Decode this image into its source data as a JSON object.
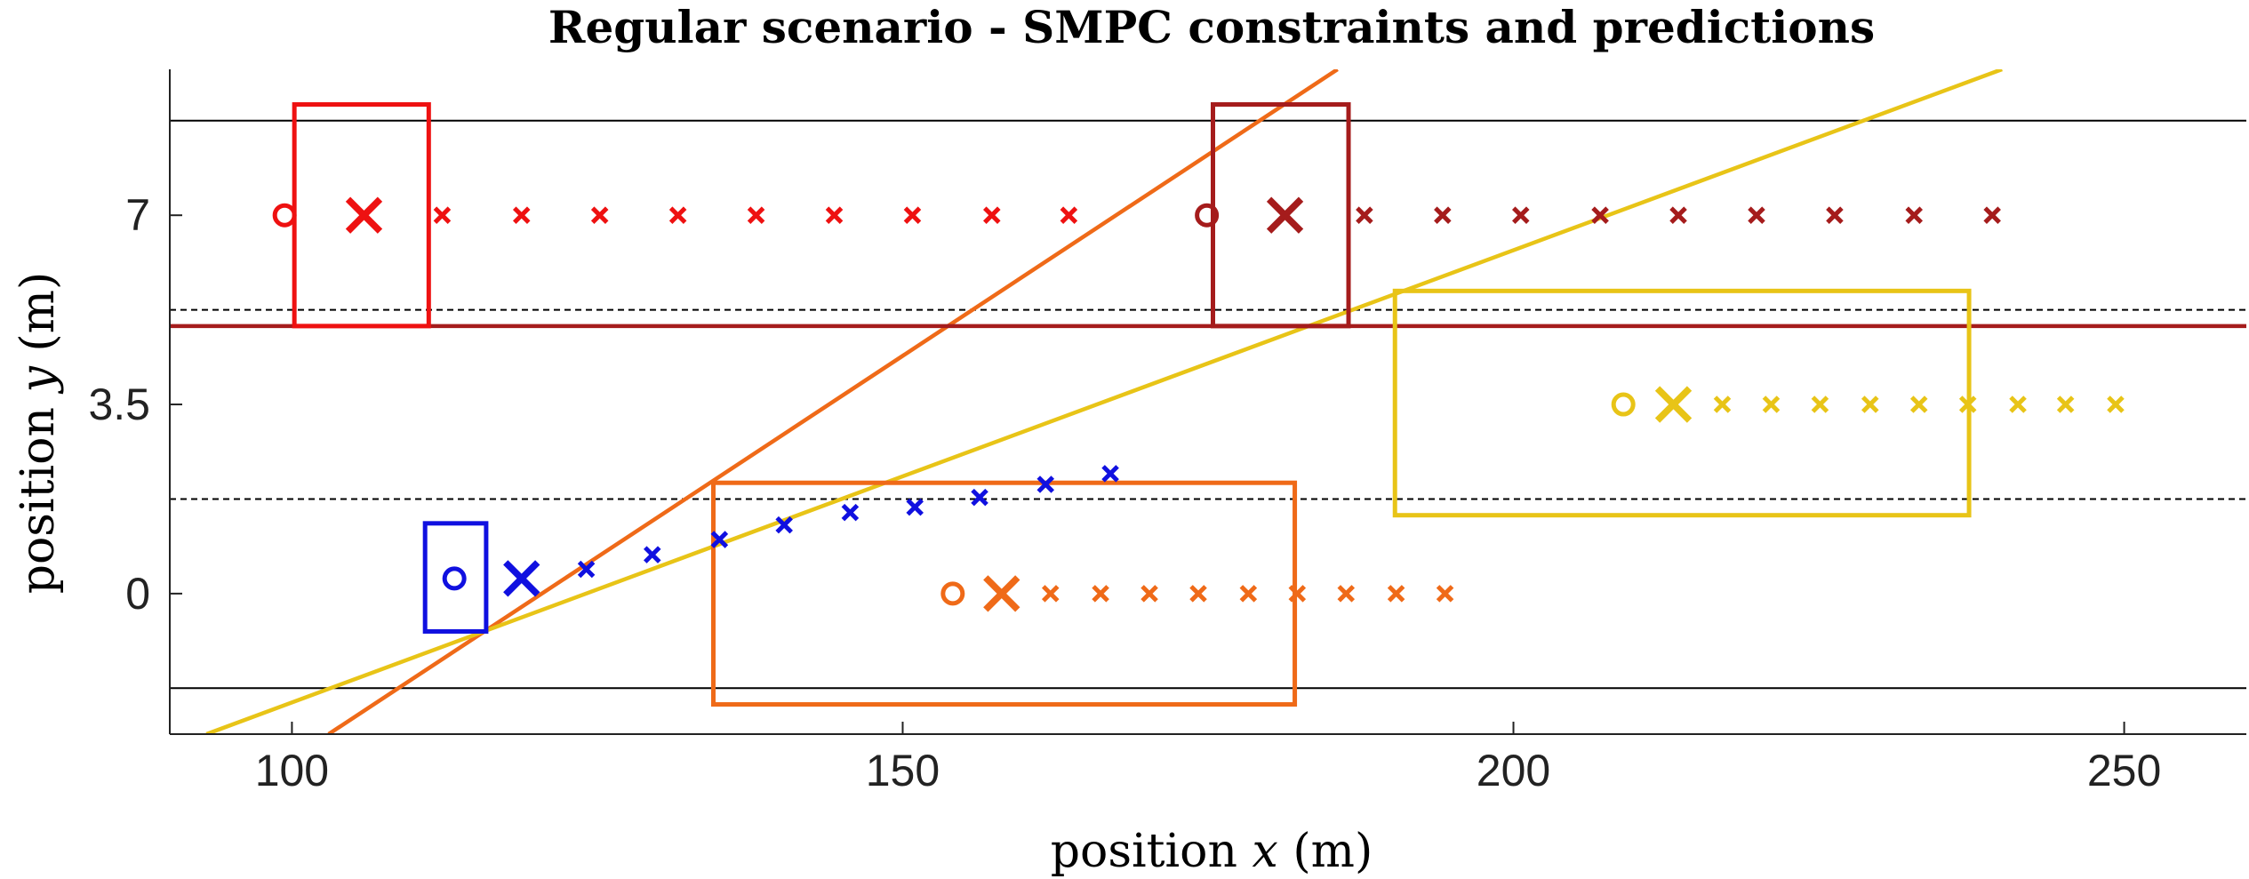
{
  "chart_data": {
    "type": "scatter",
    "title": "Regular scenario - SMPC constraints and predictions",
    "xlabel": {
      "prefix": "position ",
      "var": "x",
      "suffix": " (m)"
    },
    "ylabel": {
      "prefix": "position ",
      "var": "y",
      "suffix": " (m)"
    },
    "xlim": [
      90,
      260
    ],
    "ylim": [
      -2.6,
      9.7
    ],
    "xticks": [
      100,
      150,
      200,
      250
    ],
    "yticks": [
      0,
      3.5,
      7
    ],
    "ytick_labels": [
      "0",
      "3.5",
      "7"
    ],
    "lane_lines": {
      "solid": [
        -1.75,
        8.75
      ],
      "dashed": [
        1.75,
        5.25
      ]
    },
    "constraint_lines": [
      {
        "name": "orange-constraint",
        "color": "#ef6a18",
        "from": [
          103,
          -2.6
        ],
        "to": [
          185.6,
          9.7
        ]
      },
      {
        "name": "yellow-constraint",
        "color": "#e8c417",
        "from": [
          93,
          -2.6
        ],
        "to": [
          240,
          9.7
        ]
      },
      {
        "name": "darkred-constraint",
        "color": "#a51c1c",
        "from": [
          90,
          4.95
        ],
        "to": [
          260,
          4.95
        ]
      }
    ],
    "safety_boxes": [
      {
        "name": "red-vehicle-box",
        "color": "#ee1111",
        "x0": 100.2,
        "x1": 111.2,
        "y0": 4.95,
        "y1": 9.05
      },
      {
        "name": "darkred-vehicle-box",
        "color": "#a51c1c",
        "x0": 175.4,
        "x1": 186.5,
        "y0": 4.95,
        "y1": 9.05
      },
      {
        "name": "yellow-vehicle-box",
        "color": "#e8c417",
        "x0": 190.3,
        "x1": 237.3,
        "y0": 1.45,
        "y1": 5.6
      },
      {
        "name": "orange-vehicle-box",
        "color": "#ef6a18",
        "x0": 134.5,
        "x1": 182.1,
        "y0": -2.05,
        "y1": 2.05
      },
      {
        "name": "ego-vehicle-box",
        "color": "#1010e0",
        "x0": 110.9,
        "x1": 115.9,
        "y0": -0.7,
        "y1": 1.3
      }
    ],
    "series": [
      {
        "name": "Ego vehicle",
        "color": "#1010e0",
        "start": {
          "x": 113.3,
          "y": 0.28
        },
        "current": {
          "x": 118.8,
          "y": 0.28
        },
        "predictions": {
          "x": [
            124.1,
            129.5,
            135.0,
            140.3,
            145.7,
            151.0,
            156.3,
            161.7,
            167.0
          ],
          "y": [
            0.45,
            0.72,
            1.0,
            1.27,
            1.5,
            1.6,
            1.78,
            2.02,
            2.22
          ]
        }
      },
      {
        "name": "Red vehicle",
        "color": "#ee1111",
        "start": {
          "x": 99.4,
          "y": 7
        },
        "current": {
          "x": 105.9,
          "y": 7
        },
        "predictions": {
          "x": [
            112.3,
            118.8,
            125.2,
            131.6,
            138.0,
            144.4,
            150.8,
            157.3,
            163.6
          ],
          "y": [
            7,
            7,
            7,
            7,
            7,
            7,
            7,
            7,
            7
          ]
        }
      },
      {
        "name": "Dark red vehicle",
        "color": "#a51c1c",
        "start": {
          "x": 174.9,
          "y": 7
        },
        "current": {
          "x": 181.3,
          "y": 7
        },
        "predictions": {
          "x": [
            187.8,
            194.2,
            200.6,
            207.1,
            213.5,
            219.9,
            226.3,
            232.8,
            239.2
          ],
          "y": [
            7,
            7,
            7,
            7,
            7,
            7,
            7,
            7,
            7
          ]
        }
      },
      {
        "name": "Yellow vehicle",
        "color": "#e8c417",
        "start": {
          "x": 209.0,
          "y": 3.5
        },
        "current": {
          "x": 213.1,
          "y": 3.5
        },
        "predictions": {
          "x": [
            217.1,
            221.1,
            225.1,
            229.2,
            233.2,
            237.2,
            241.3,
            245.2,
            249.3
          ],
          "y": [
            3.5,
            3.5,
            3.5,
            3.5,
            3.5,
            3.5,
            3.5,
            3.5,
            3.5
          ]
        }
      },
      {
        "name": "Orange vehicle",
        "color": "#ef6a18",
        "start": {
          "x": 154.1,
          "y": 0
        },
        "current": {
          "x": 158.1,
          "y": 0
        },
        "predictions": {
          "x": [
            162.1,
            166.2,
            170.2,
            174.2,
            178.3,
            182.3,
            186.3,
            190.4,
            194.4
          ],
          "y": [
            0,
            0,
            0,
            0,
            0,
            0,
            0,
            0,
            0
          ]
        }
      }
    ]
  }
}
